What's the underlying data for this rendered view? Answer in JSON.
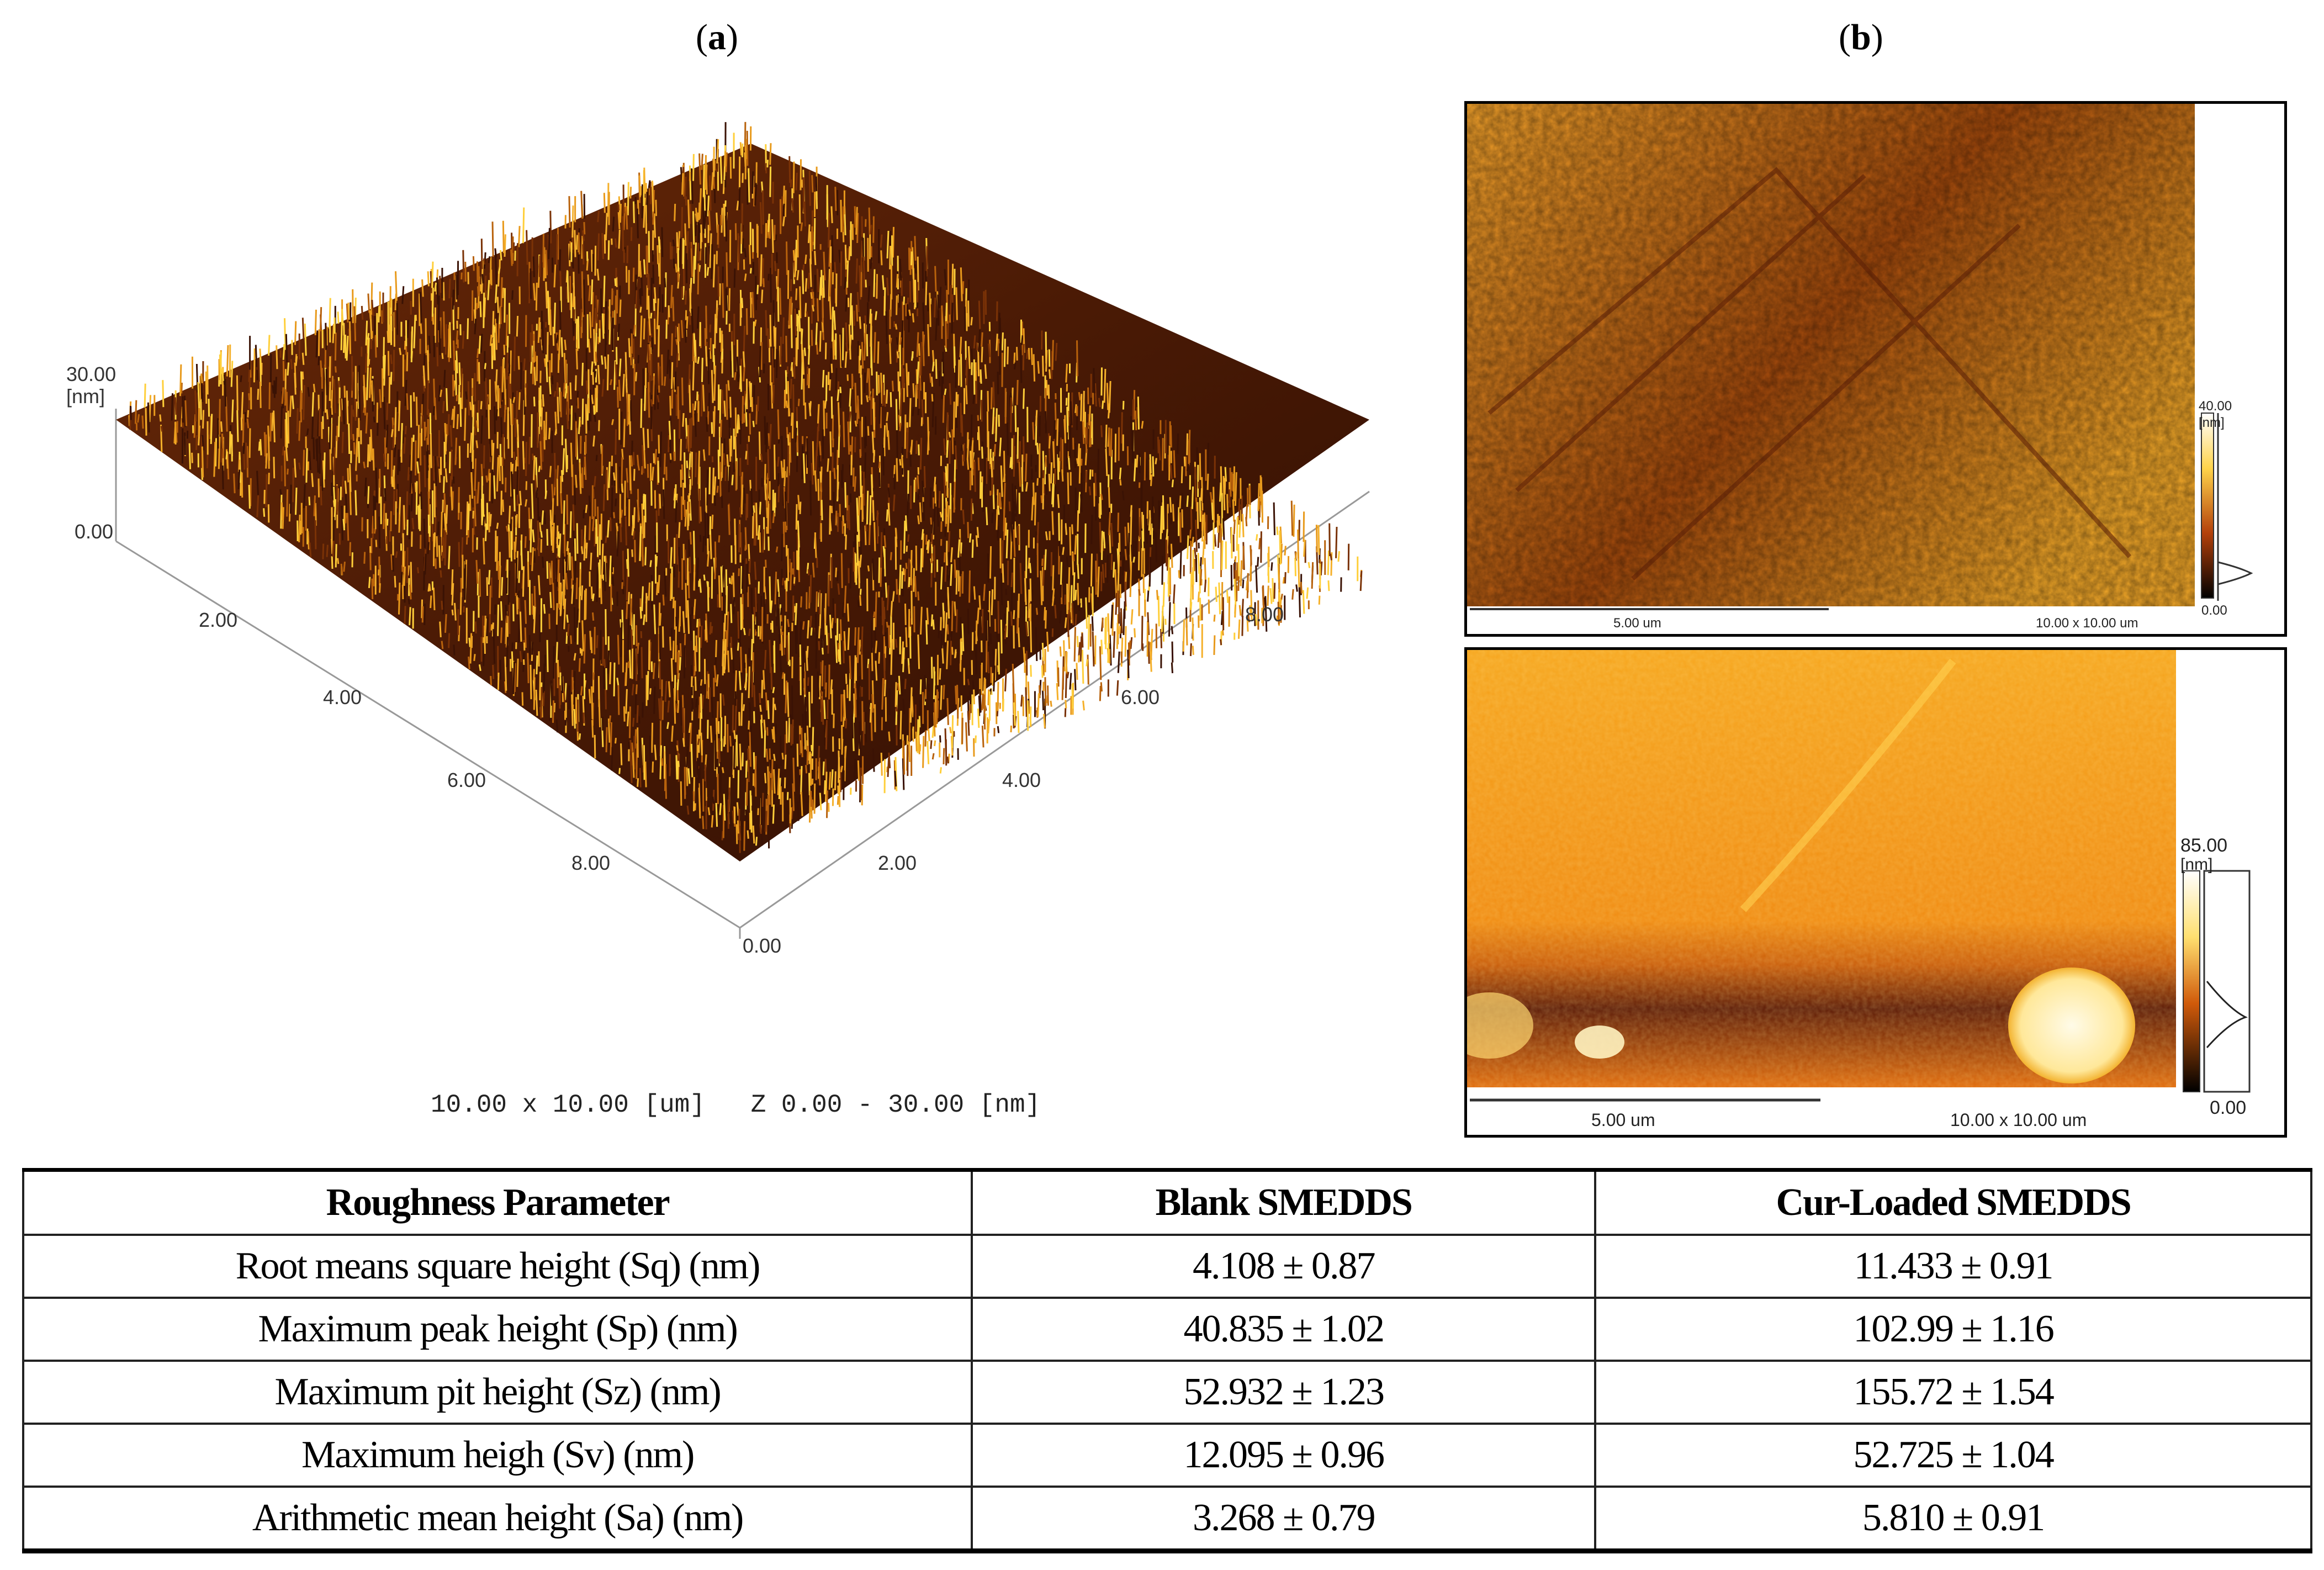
{
  "panels": {
    "a": {
      "open": "(",
      "letter": "a",
      "close": ")"
    },
    "b": {
      "open": "(",
      "letter": "b",
      "close": ")"
    }
  },
  "plot3d": {
    "z_max_label": "30.00",
    "z_unit": "[nm]",
    "z_min_label": "0.00",
    "left_axis_ticks": [
      "2.00",
      "4.00",
      "6.00",
      "8.00"
    ],
    "right_axis_ticks": [
      "2.00",
      "4.00",
      "6.00",
      "8.00"
    ],
    "origin_label": "0.00",
    "caption": "10.00 x 10.00 [um]   Z 0.00 - 30.00 [nm]"
  },
  "afm_top": {
    "scale_max": "40.00",
    "unit": "[nm]",
    "scale_min": "0.00",
    "scalebar": "5.00 um",
    "size": "10.00 x 10.00 um"
  },
  "afm_bottom": {
    "scale_max": "85.00",
    "unit": "[nm]",
    "scale_min": "0.00",
    "scalebar": "5.00 um",
    "size": "10.00 x 10.00 um"
  },
  "table": {
    "headers": [
      "Roughness Parameter",
      "Blank SMEDDS",
      "Cur-Loaded SMEDDS"
    ],
    "rows": [
      [
        "Root means square height (Sq) (nm)",
        "4.108 ± 0.87",
        "11.433 ± 0.91"
      ],
      [
        "Maximum peak height (Sp) (nm)",
        "40.835 ± 1.02",
        "102.99 ± 1.16"
      ],
      [
        "Maximum pit height (Sz) (nm)",
        "52.932 ± 1.23",
        "155.72 ± 1.54"
      ],
      [
        "Maximum heigh (Sv) (nm)",
        "12.095 ± 0.96",
        "52.725 ± 1.04"
      ],
      [
        "Arithmetic mean height (Sa) (nm)",
        "3.268 ± 0.79",
        "5.810 ± 0.91"
      ]
    ]
  },
  "colors": {
    "afm_dark": "#3a1204",
    "afm_mid": "#b45a0a",
    "afm_bright": "#ffd24a"
  }
}
